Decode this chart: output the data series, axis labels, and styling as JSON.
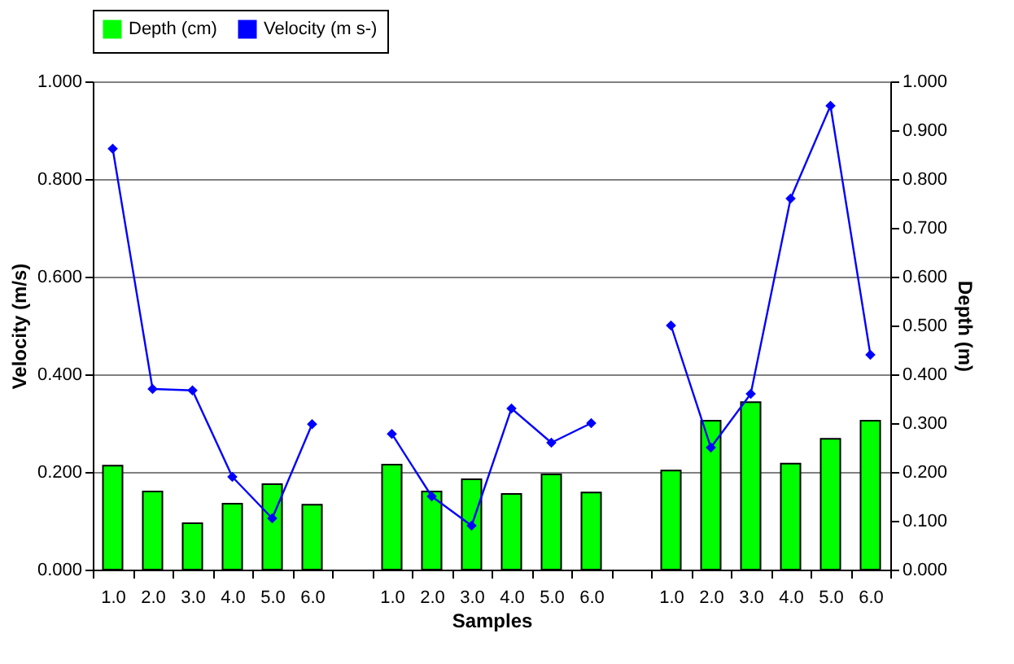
{
  "chart_data": {
    "type": "bar",
    "categories": [
      "1.0",
      "2.0",
      "3.0",
      "4.0",
      "5.0",
      "6.0",
      null,
      "1.0",
      "2.0",
      "3.0",
      "4.0",
      "5.0",
      "6.0",
      null,
      "1.0",
      "2.0",
      "3.0",
      "4.0",
      "5.0",
      "6.0"
    ],
    "series": [
      {
        "name": "Depth (cm)",
        "axis": "y2",
        "color": "#00ff00",
        "values": [
          0.213,
          0.16,
          0.095,
          0.135,
          0.175,
          0.133,
          null,
          0.215,
          0.16,
          0.185,
          0.155,
          0.195,
          0.158,
          null,
          0.203,
          0.305,
          0.343,
          0.217,
          0.268,
          0.305
        ]
      },
      {
        "name": "Velocity (m s-)",
        "type": "line",
        "color": "#0000ff",
        "values": [
          0.862,
          0.37,
          0.367,
          0.19,
          0.105,
          0.298,
          null,
          0.278,
          0.15,
          0.09,
          0.33,
          0.26,
          0.3,
          null,
          0.5,
          0.25,
          0.36,
          0.76,
          0.95,
          0.44
        ]
      }
    ],
    "xlabel": "Samples",
    "ylabel": "Velocity (m/s)",
    "y2label": "Depth (m)",
    "ylim": [
      0,
      1
    ],
    "yticks": [
      {
        "value": 0,
        "label": "0.000"
      },
      {
        "value": 0.2,
        "label": "0.200"
      },
      {
        "value": 0.4,
        "label": "0.400"
      },
      {
        "value": 0.6,
        "label": "0.600"
      },
      {
        "value": 0.8,
        "label": "0.800"
      },
      {
        "value": 1,
        "label": "1.000"
      }
    ],
    "y2lim": [
      0,
      1
    ],
    "y2ticks": [
      {
        "value": 0,
        "label": "0.000"
      },
      {
        "value": 0.1,
        "label": "0.100"
      },
      {
        "value": 0.2,
        "label": "0.200"
      },
      {
        "value": 0.3,
        "label": "0.300"
      },
      {
        "value": 0.4,
        "label": "0.400"
      },
      {
        "value": 0.5,
        "label": "0.500"
      },
      {
        "value": 0.6,
        "label": "0.600"
      },
      {
        "value": 0.7,
        "label": "0.700"
      },
      {
        "value": 0.8,
        "label": "0.800"
      },
      {
        "value": 0.9,
        "label": "0.900"
      },
      {
        "value": 1,
        "label": "1.000"
      }
    ],
    "grid": "y",
    "legend": "top",
    "marker": "diamond",
    "line_style": "solid"
  }
}
